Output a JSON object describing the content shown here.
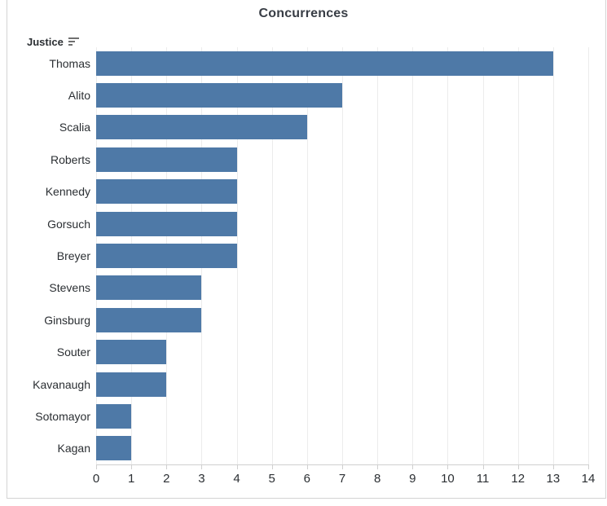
{
  "header": {
    "title": "Concurrences",
    "row_field": {
      "label": "Justice",
      "sort_icon": "sort-descending-icon"
    }
  },
  "chart_data": {
    "type": "bar",
    "orientation": "horizontal",
    "title": "Concurrences",
    "xlabel": "",
    "ylabel": "Justice",
    "categories": [
      "Thomas",
      "Alito",
      "Scalia",
      "Roberts",
      "Kennedy",
      "Gorsuch",
      "Breyer",
      "Stevens",
      "Ginsburg",
      "Souter",
      "Kavanaugh",
      "Sotomayor",
      "Kagan"
    ],
    "values": [
      13,
      7,
      6,
      4,
      4,
      4,
      4,
      3,
      3,
      2,
      2,
      1,
      1
    ],
    "xlim": [
      0,
      14
    ],
    "x_ticks": [
      0,
      1,
      2,
      3,
      4,
      5,
      6,
      7,
      8,
      9,
      10,
      11,
      12,
      13,
      14
    ],
    "sort_order": "descending",
    "grid": "vertical",
    "legend": "none",
    "colors": {
      "bar": "#4e79a7",
      "gridline": "#ececec",
      "axis_line": "#d0d0d0",
      "tick": "#d0d0d0",
      "text": "#2b2f33",
      "border": "#d4d4d4"
    }
  }
}
